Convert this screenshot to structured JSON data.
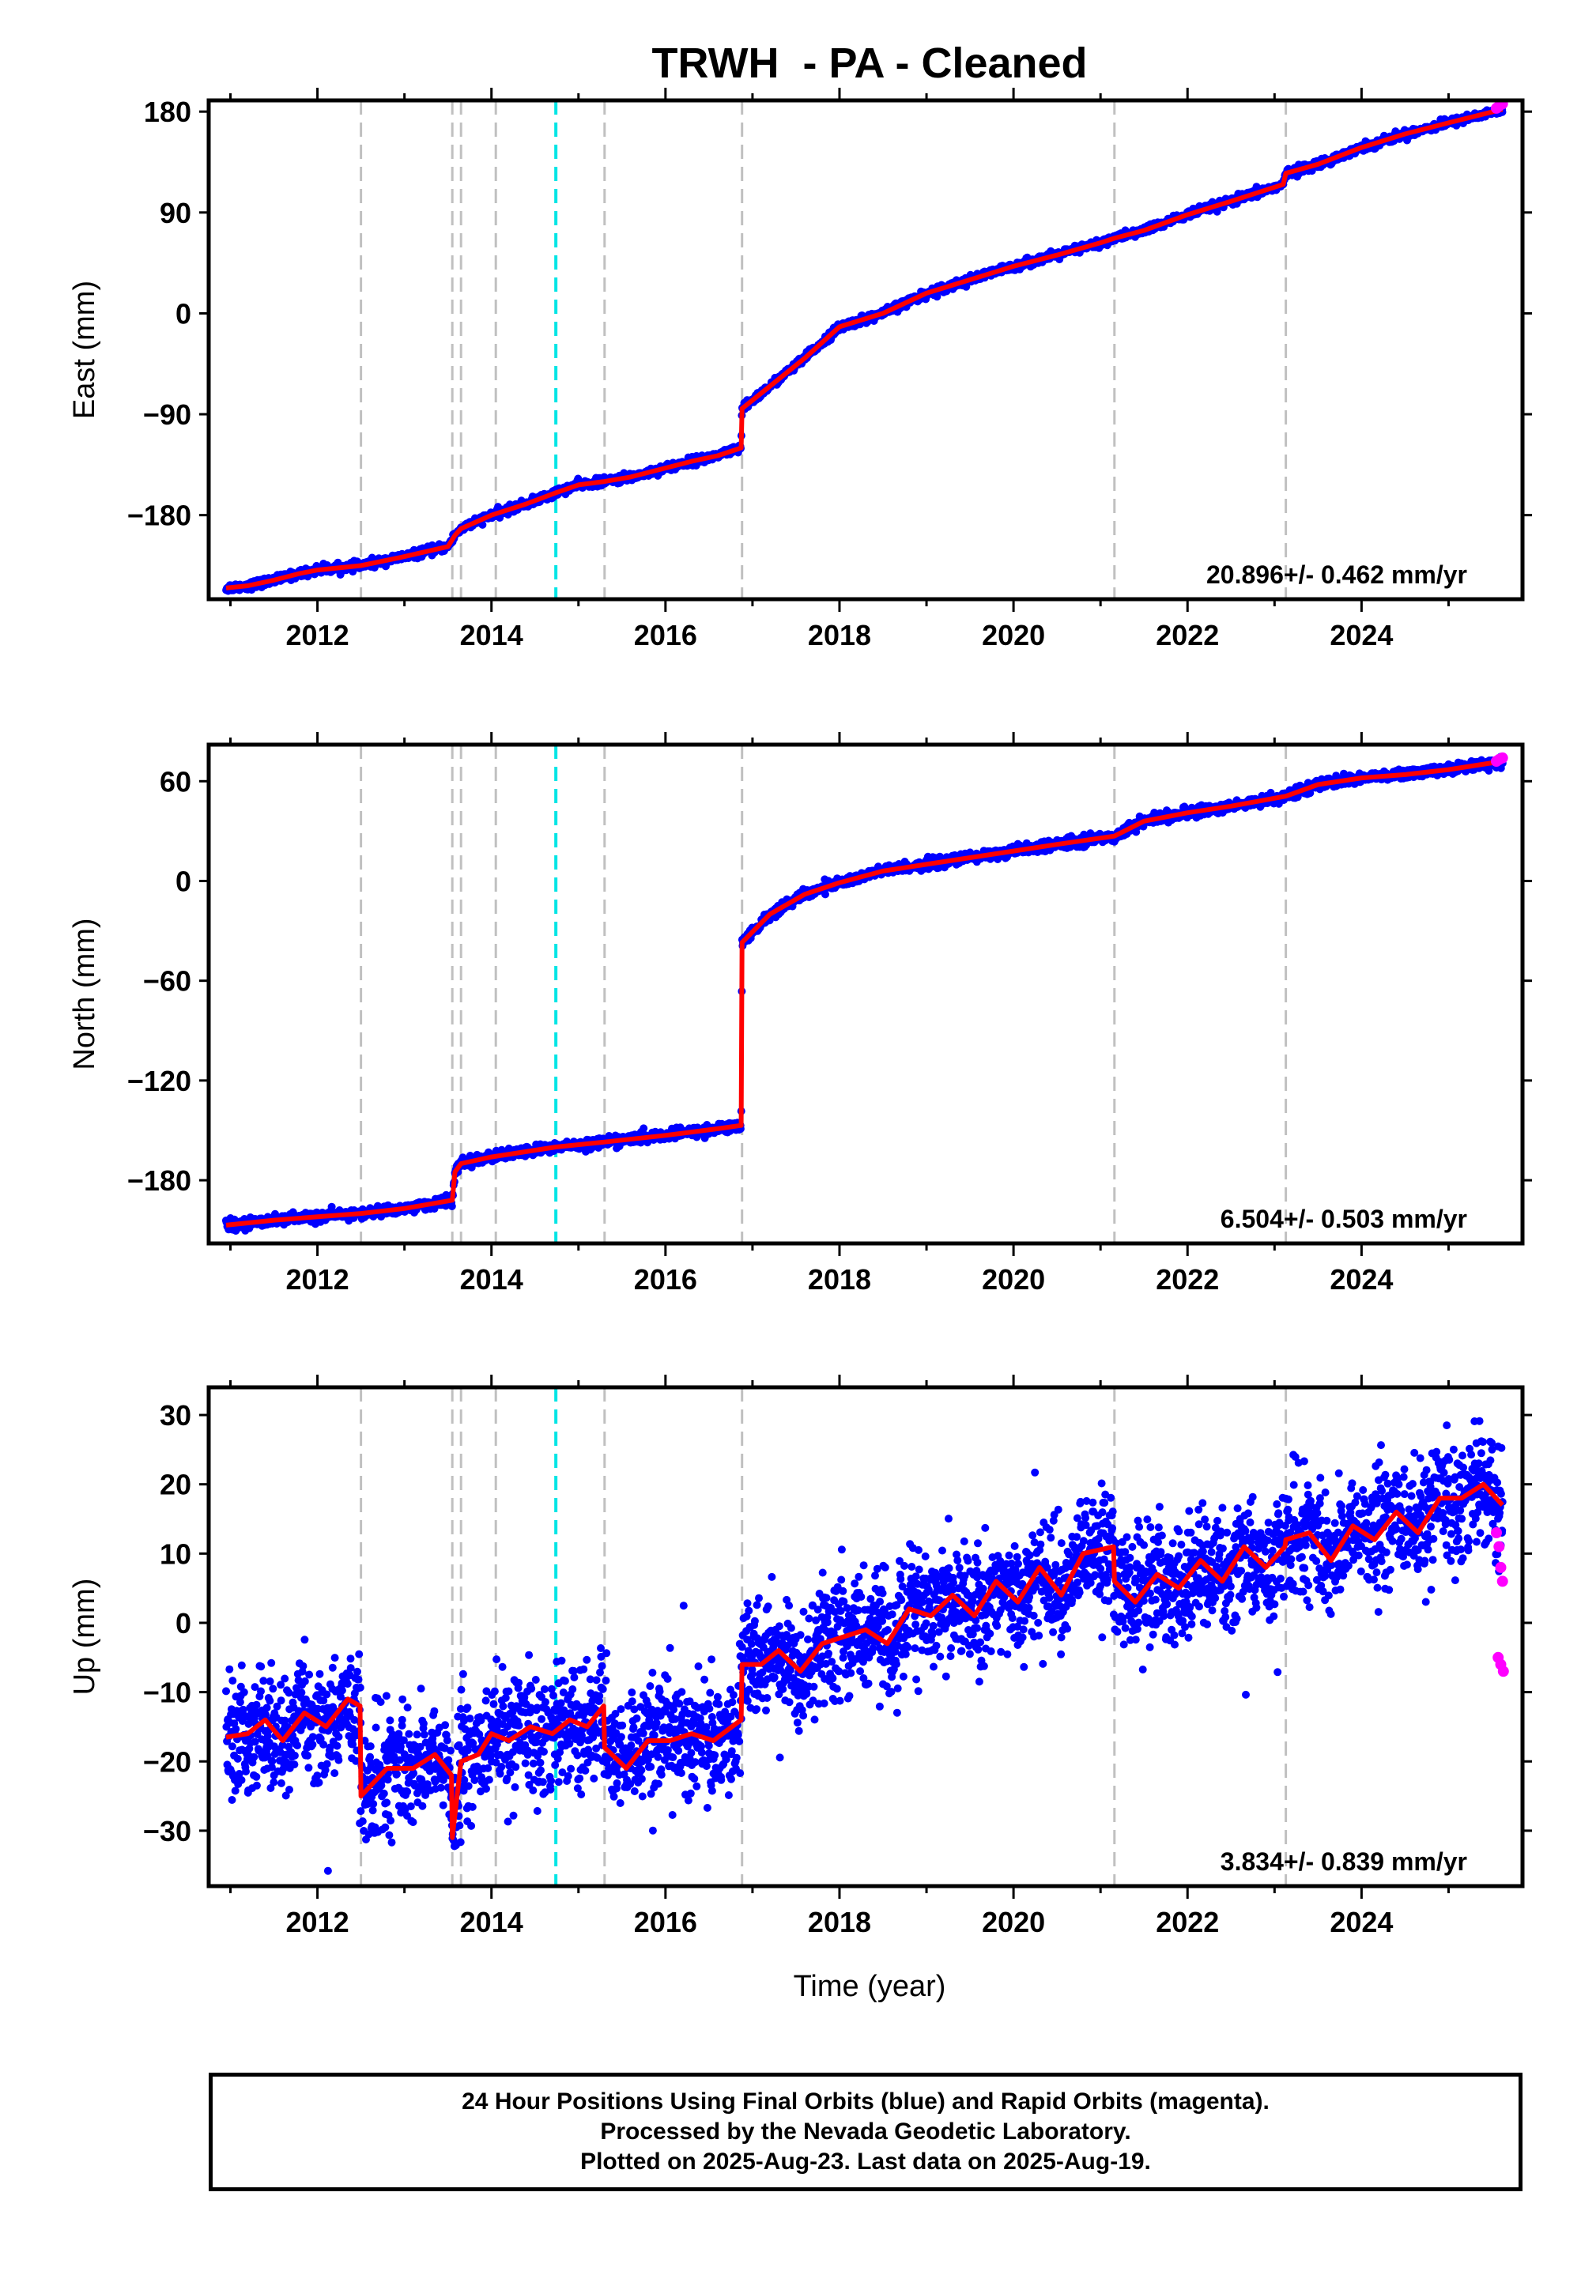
{
  "figure": {
    "title": "TRWH  - PA - Cleaned",
    "xlabel": "Time (year)",
    "footer": [
      "24 Hour Positions Using Final Orbits (blue) and Rapid Orbits (magenta).",
      "Processed by the Nevada Geodetic Laboratory.",
      "Plotted on 2025-Aug-23. Last data on 2025-Aug-19."
    ]
  },
  "colors": {
    "final_orbits": "#0000ff",
    "rapid_orbits": "#ff00ff",
    "model": "#ff0000",
    "event_line": "#c0c0c0",
    "highlight_event_line": "#00e5e5"
  },
  "chart_data": [
    {
      "type": "scatter",
      "component": "east",
      "ylabel": "East (mm)",
      "xlim": [
        2010.75,
        2025.85
      ],
      "ylim": [
        -255,
        190
      ],
      "xticks": [
        2012,
        2014,
        2016,
        2018,
        2020,
        2022,
        2024
      ],
      "yticks": [
        -180,
        -90,
        0,
        90,
        180
      ],
      "rate": "20.896+/- 0.462 mm/yr",
      "grid": false,
      "event_lines": [
        2012.5,
        2013.55,
        2013.65,
        2014.05,
        2015.3,
        2016.88,
        2021.16,
        2023.13
      ],
      "highlight_event_lines": [
        2014.74
      ],
      "model_points": [
        [
          2010.95,
          -245
        ],
        [
          2011.2,
          -243
        ],
        [
          2011.5,
          -238
        ],
        [
          2011.8,
          -232
        ],
        [
          2012.0,
          -229
        ],
        [
          2012.5,
          -225
        ],
        [
          2013.0,
          -217
        ],
        [
          2013.5,
          -208
        ],
        [
          2013.58,
          -198
        ],
        [
          2013.65,
          -192
        ],
        [
          2014.0,
          -180
        ],
        [
          2014.4,
          -170
        ],
        [
          2014.74,
          -160
        ],
        [
          2015.0,
          -153
        ],
        [
          2015.3,
          -150
        ],
        [
          2015.6,
          -146
        ],
        [
          2016.0,
          -138
        ],
        [
          2016.3,
          -132
        ],
        [
          2016.6,
          -127
        ],
        [
          2016.87,
          -120
        ],
        [
          2016.88,
          -85
        ],
        [
          2017.2,
          -65
        ],
        [
          2017.6,
          -40
        ],
        [
          2018.0,
          -12
        ],
        [
          2018.5,
          0
        ],
        [
          2019.0,
          18
        ],
        [
          2019.5,
          30
        ],
        [
          2020.0,
          42
        ],
        [
          2020.5,
          52
        ],
        [
          2021.0,
          63
        ],
        [
          2021.16,
          67
        ],
        [
          2021.5,
          74
        ],
        [
          2022.0,
          88
        ],
        [
          2022.5,
          100
        ],
        [
          2023.1,
          115
        ],
        [
          2023.13,
          125
        ],
        [
          2023.5,
          133
        ],
        [
          2024.0,
          148
        ],
        [
          2024.5,
          160
        ],
        [
          2025.0,
          170
        ],
        [
          2025.62,
          182
        ]
      ],
      "rapid_points": [
        [
          2025.55,
          183
        ],
        [
          2025.58,
          185
        ],
        [
          2025.62,
          187
        ]
      ]
    },
    {
      "type": "scatter",
      "component": "north",
      "ylabel": "North (mm)",
      "xlim": [
        2010.75,
        2025.85
      ],
      "ylim": [
        -218,
        82
      ],
      "xticks": [
        2012,
        2014,
        2016,
        2018,
        2020,
        2022,
        2024
      ],
      "yticks": [
        -180,
        -120,
        -60,
        0,
        60
      ],
      "rate": "6.504+/- 0.503 mm/yr",
      "grid": false,
      "event_lines": [
        2012.5,
        2013.55,
        2013.65,
        2014.05,
        2015.3,
        2016.88,
        2021.16,
        2023.13
      ],
      "highlight_event_lines": [
        2014.74
      ],
      "model_points": [
        [
          2010.95,
          -207
        ],
        [
          2011.5,
          -204
        ],
        [
          2012.0,
          -202
        ],
        [
          2012.5,
          -200
        ],
        [
          2013.0,
          -197
        ],
        [
          2013.55,
          -192
        ],
        [
          2013.58,
          -175
        ],
        [
          2013.65,
          -170
        ],
        [
          2014.0,
          -166
        ],
        [
          2014.74,
          -160
        ],
        [
          2015.3,
          -157
        ],
        [
          2016.0,
          -153
        ],
        [
          2016.6,
          -149
        ],
        [
          2016.87,
          -147
        ],
        [
          2016.88,
          -37
        ],
        [
          2017.2,
          -20
        ],
        [
          2017.6,
          -8
        ],
        [
          2018.0,
          -1
        ],
        [
          2018.5,
          6
        ],
        [
          2019.0,
          10
        ],
        [
          2019.5,
          14
        ],
        [
          2020.0,
          18
        ],
        [
          2020.5,
          22
        ],
        [
          2021.16,
          27
        ],
        [
          2021.5,
          36
        ],
        [
          2022.0,
          41
        ],
        [
          2022.5,
          45
        ],
        [
          2023.13,
          51
        ],
        [
          2023.5,
          58
        ],
        [
          2024.0,
          62
        ],
        [
          2024.5,
          64
        ],
        [
          2025.0,
          67
        ],
        [
          2025.62,
          72
        ]
      ],
      "rapid_points": [
        [
          2025.55,
          72
        ],
        [
          2025.58,
          73
        ],
        [
          2025.62,
          74
        ]
      ]
    },
    {
      "type": "scatter",
      "component": "up",
      "ylabel": "Up (mm)",
      "xlim": [
        2010.75,
        2025.85
      ],
      "ylim": [
        -38,
        34
      ],
      "xticks": [
        2012,
        2014,
        2016,
        2018,
        2020,
        2022,
        2024
      ],
      "yticks": [
        -30,
        -20,
        -10,
        0,
        10,
        20,
        30
      ],
      "rate": "3.834+/- 0.839 mm/yr",
      "grid": false,
      "event_lines": [
        2012.5,
        2013.55,
        2013.65,
        2014.05,
        2015.3,
        2016.88,
        2021.16,
        2023.13
      ],
      "highlight_event_lines": [
        2014.74
      ],
      "model_points": [
        [
          2010.95,
          -16.5
        ],
        [
          2011.2,
          -16
        ],
        [
          2011.4,
          -14
        ],
        [
          2011.6,
          -17
        ],
        [
          2011.85,
          -13
        ],
        [
          2012.1,
          -15
        ],
        [
          2012.35,
          -11
        ],
        [
          2012.49,
          -12
        ],
        [
          2012.5,
          -25
        ],
        [
          2012.8,
          -21
        ],
        [
          2013.1,
          -21
        ],
        [
          2013.35,
          -19
        ],
        [
          2013.54,
          -22
        ],
        [
          2013.55,
          -31
        ],
        [
          2013.65,
          -20
        ],
        [
          2013.85,
          -19
        ],
        [
          2014.0,
          -16
        ],
        [
          2014.2,
          -17
        ],
        [
          2014.45,
          -15
        ],
        [
          2014.7,
          -16
        ],
        [
          2014.9,
          -14
        ],
        [
          2015.1,
          -15
        ],
        [
          2015.29,
          -12
        ],
        [
          2015.3,
          -18
        ],
        [
          2015.55,
          -21
        ],
        [
          2015.8,
          -17
        ],
        [
          2016.05,
          -17
        ],
        [
          2016.3,
          -16
        ],
        [
          2016.55,
          -17
        ],
        [
          2016.87,
          -14
        ],
        [
          2016.88,
          -6
        ],
        [
          2017.1,
          -6
        ],
        [
          2017.3,
          -4
        ],
        [
          2017.55,
          -7
        ],
        [
          2017.8,
          -3
        ],
        [
          2018.05,
          -2
        ],
        [
          2018.3,
          -1
        ],
        [
          2018.55,
          -3
        ],
        [
          2018.8,
          2
        ],
        [
          2019.05,
          1
        ],
        [
          2019.3,
          4
        ],
        [
          2019.55,
          1
        ],
        [
          2019.8,
          6
        ],
        [
          2020.05,
          3
        ],
        [
          2020.3,
          8
        ],
        [
          2020.55,
          4
        ],
        [
          2020.8,
          10
        ],
        [
          2021.15,
          11
        ],
        [
          2021.16,
          6
        ],
        [
          2021.4,
          3
        ],
        [
          2021.65,
          7
        ],
        [
          2021.9,
          5
        ],
        [
          2022.15,
          9
        ],
        [
          2022.4,
          6
        ],
        [
          2022.65,
          11
        ],
        [
          2022.9,
          8
        ],
        [
          2023.12,
          11
        ],
        [
          2023.13,
          12
        ],
        [
          2023.4,
          13
        ],
        [
          2023.65,
          9
        ],
        [
          2023.9,
          14
        ],
        [
          2024.15,
          12
        ],
        [
          2024.4,
          16
        ],
        [
          2024.65,
          13
        ],
        [
          2024.9,
          18
        ],
        [
          2025.15,
          18
        ],
        [
          2025.4,
          20
        ],
        [
          2025.62,
          17
        ]
      ],
      "rapid_points": [
        [
          2025.55,
          13
        ],
        [
          2025.58,
          11
        ],
        [
          2025.6,
          8
        ],
        [
          2025.62,
          6
        ],
        [
          2025.57,
          -5
        ],
        [
          2025.6,
          -6
        ],
        [
          2025.63,
          -7
        ]
      ]
    }
  ]
}
